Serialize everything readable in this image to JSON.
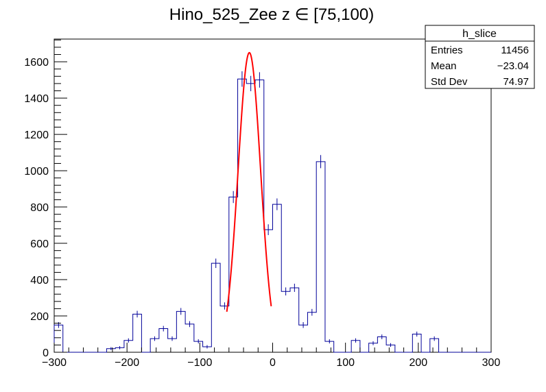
{
  "chart_data": {
    "type": "bar",
    "title": "Hino_525_Zee z  ∈ [75,100)",
    "xlabel": "",
    "ylabel": "",
    "xlim": [
      -300,
      300
    ],
    "ylim": [
      0,
      1725
    ],
    "x_ticks": [
      {
        "value": -300,
        "label": "−300"
      },
      {
        "value": -200,
        "label": "−200"
      },
      {
        "value": -100,
        "label": "−100"
      },
      {
        "value": 0,
        "label": "0"
      },
      {
        "value": 100,
        "label": "100"
      },
      {
        "value": 200,
        "label": "200"
      },
      {
        "value": 300,
        "label": "300"
      }
    ],
    "y_ticks": [
      {
        "value": 0,
        "label": "0"
      },
      {
        "value": 200,
        "label": "200"
      },
      {
        "value": 400,
        "label": "400"
      },
      {
        "value": 600,
        "label": "600"
      },
      {
        "value": 800,
        "label": "800"
      },
      {
        "value": 1000,
        "label": "1000"
      },
      {
        "value": 1200,
        "label": "1200"
      },
      {
        "value": 1400,
        "label": "1400"
      },
      {
        "value": 1600,
        "label": "1600"
      }
    ],
    "bin_low": -300,
    "bin_width": 12,
    "values": [
      150,
      0,
      0,
      0,
      0,
      0,
      20,
      25,
      65,
      210,
      0,
      75,
      130,
      75,
      225,
      155,
      60,
      30,
      490,
      255,
      855,
      1505,
      1480,
      1500,
      675,
      815,
      335,
      355,
      150,
      220,
      1050,
      60,
      0,
      0,
      65,
      0,
      50,
      85,
      40,
      0,
      0,
      100,
      0,
      75,
      0,
      0,
      0,
      0,
      0,
      0
    ],
    "fit": {
      "type": "gaus",
      "constant": 1650,
      "mean": -32,
      "sigma": 15.5,
      "x_range": [
        -63,
        -2
      ]
    },
    "grid": false,
    "legend": "top-right",
    "colors": {
      "histogram": "#000099",
      "fit": "#ff0000",
      "axis": "#000000"
    },
    "stats": {
      "name": "h_slice",
      "rows": [
        {
          "label": "Entries",
          "value": "11456"
        },
        {
          "label": "Mean",
          "value": "−23.04"
        },
        {
          "label": "Std Dev",
          "value": "74.97"
        }
      ]
    }
  }
}
